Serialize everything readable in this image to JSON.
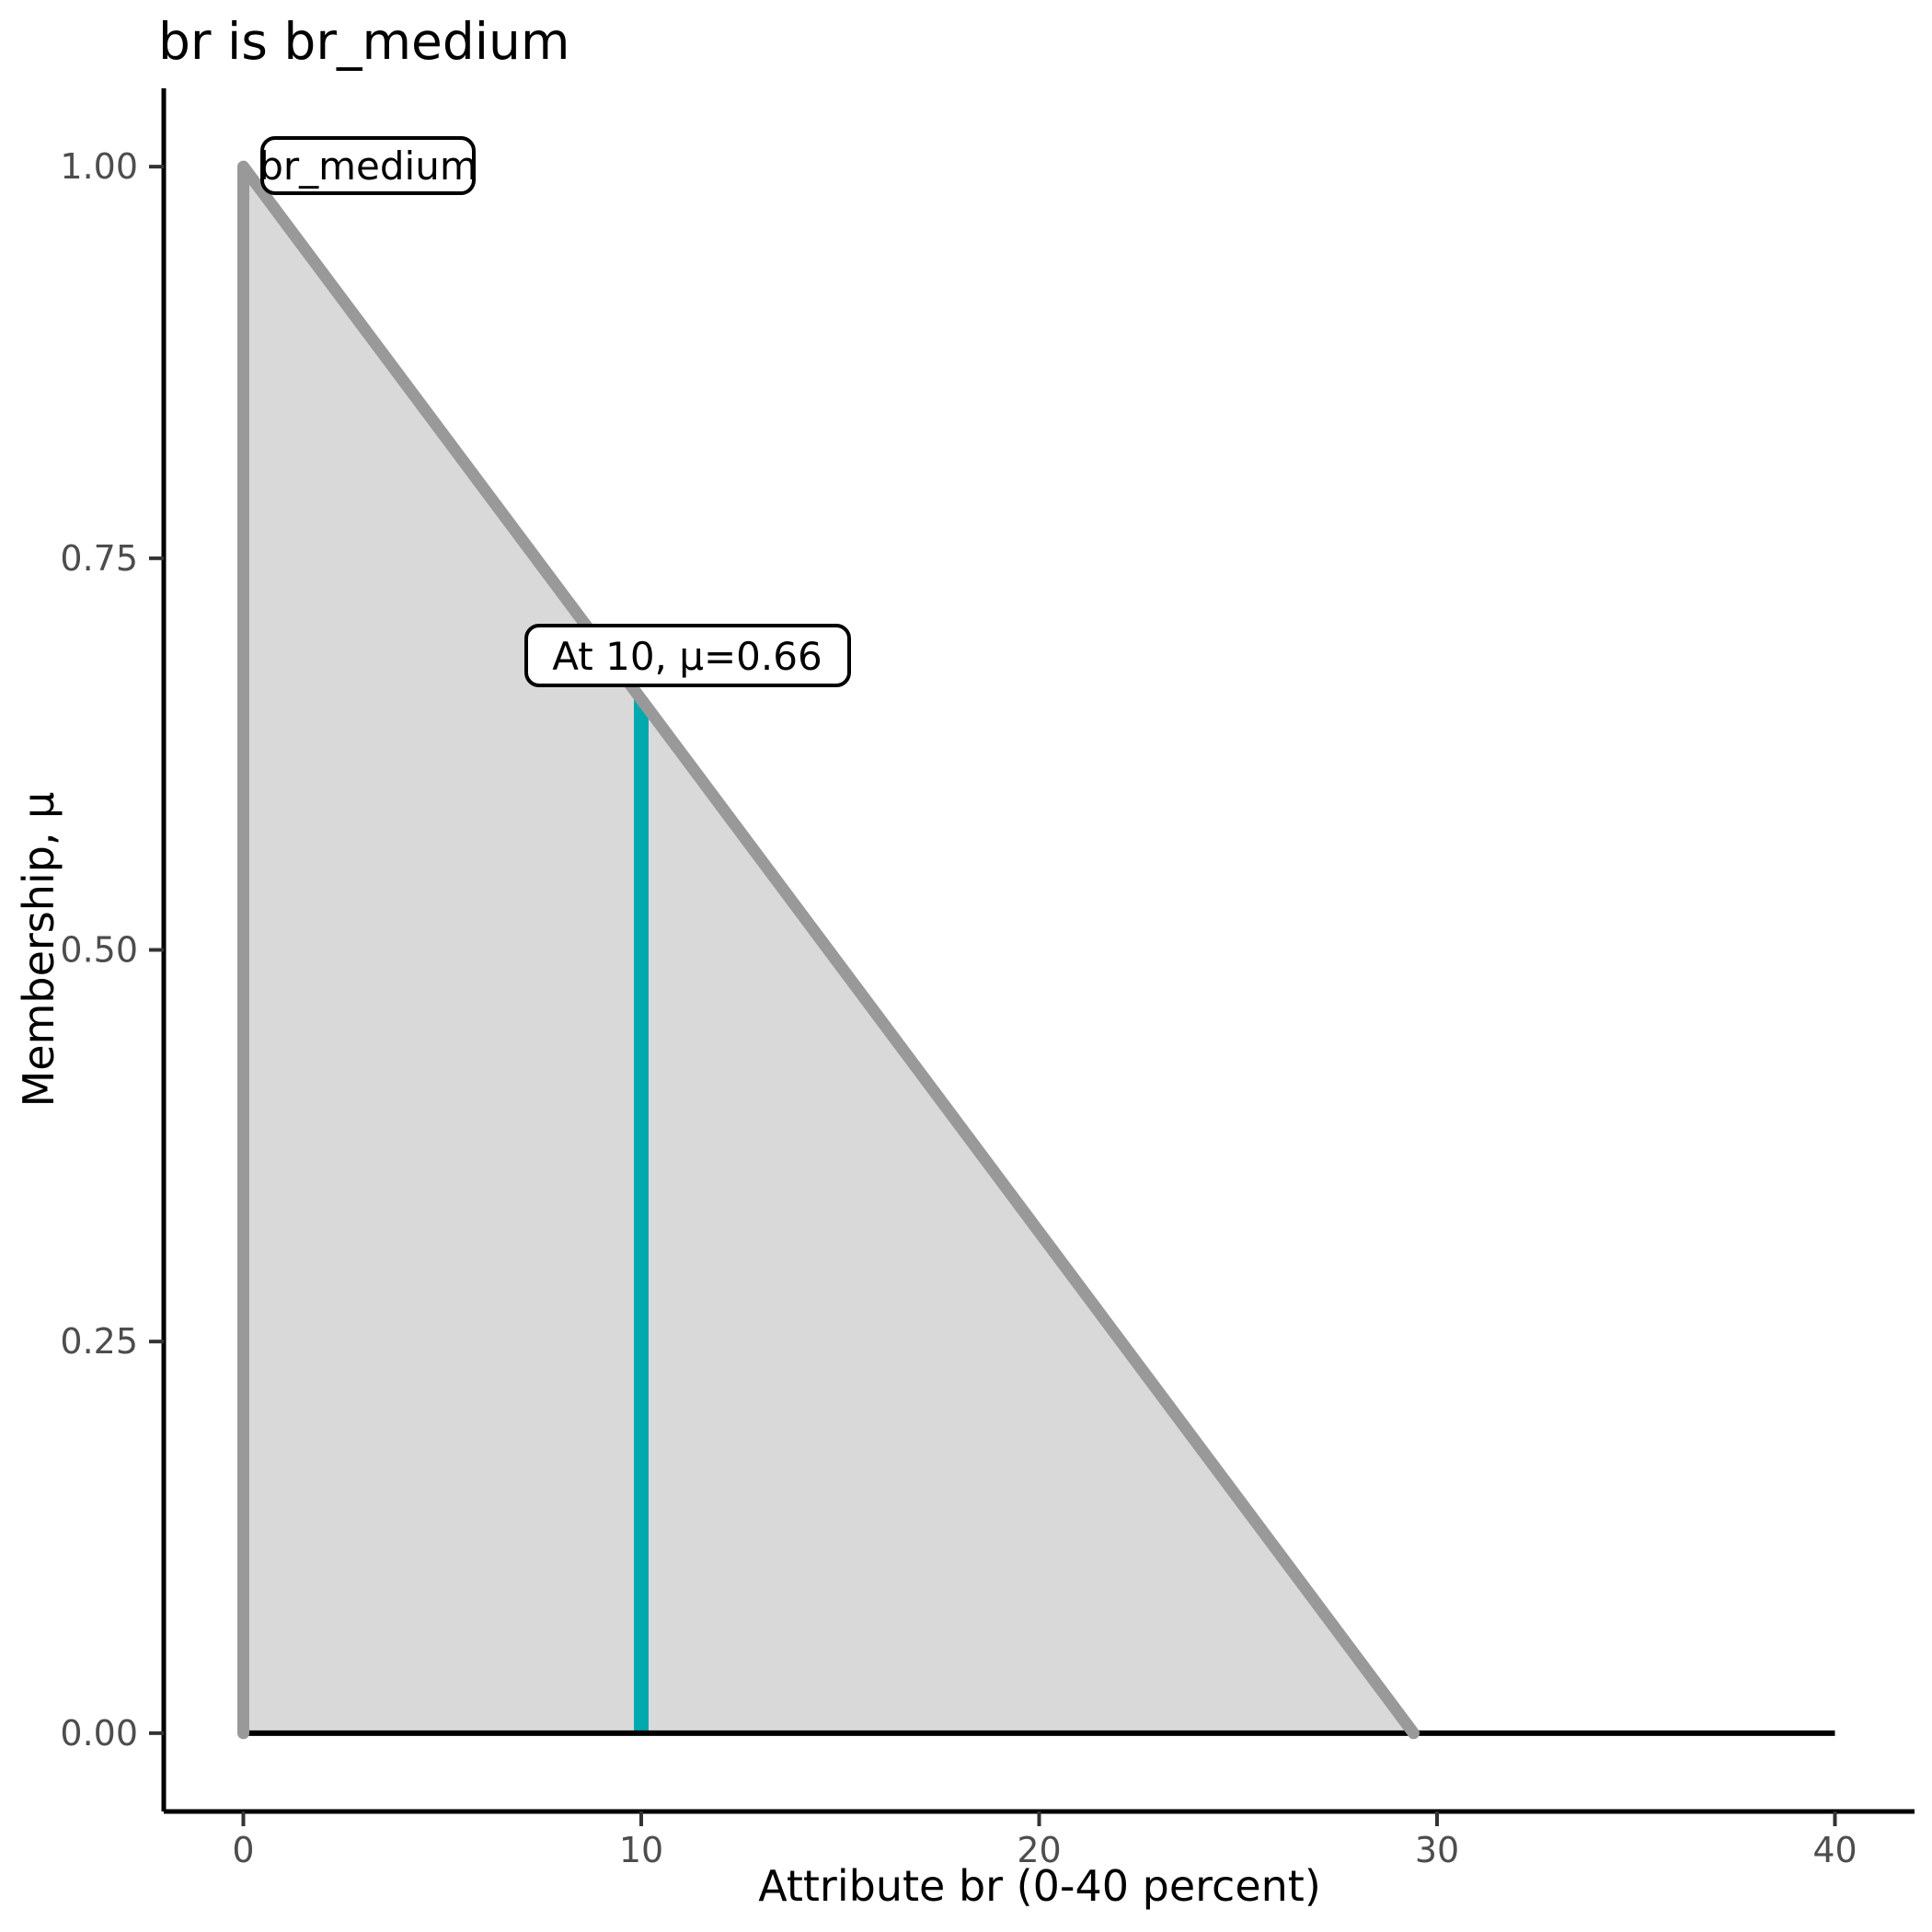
{
  "chart_data": {
    "type": "area",
    "title": "br is br_medium",
    "xlabel": "Attribute br (0-40 percent)",
    "ylabel": "Membership, μ",
    "x_ticks": {
      "values": [
        0,
        10,
        20,
        30,
        40
      ],
      "labels": [
        "0",
        "10",
        "20",
        "30",
        "40"
      ]
    },
    "y_ticks": {
      "values": [
        0,
        0.25,
        0.5,
        0.75,
        1.0
      ],
      "labels": [
        "0.00",
        "0.25",
        "0.50",
        "0.75",
        "1.00"
      ]
    },
    "xlim_display": [
      -2,
      42
    ],
    "ylim_display": [
      -0.05,
      1.05
    ],
    "grid": "off",
    "legend": "none",
    "membership_function": {
      "name": "br_medium",
      "vertices_x": [
        0,
        0,
        29.41
      ],
      "vertices_mu": [
        0,
        1,
        0
      ]
    },
    "baseline": {
      "x_start": 0,
      "x_end": 40,
      "mu": 0
    },
    "marker": {
      "x": 10,
      "mu": 0.66,
      "label": "At 10, μ=0.66"
    },
    "set_label": {
      "text": "br_medium",
      "anchor_x": 0,
      "anchor_mu": 1.0
    },
    "colors": {
      "area_fill": "#D9D9D9",
      "membership_line": "#999999",
      "baseline_line": "#000000",
      "marker_line": "#00A9AD",
      "axis_line": "#000000",
      "tick_mark": "#333333",
      "tick_label": "#4D4D4D",
      "text": "#000000",
      "annotation_bg": "#FFFFFF",
      "annotation_border": "#000000"
    }
  }
}
